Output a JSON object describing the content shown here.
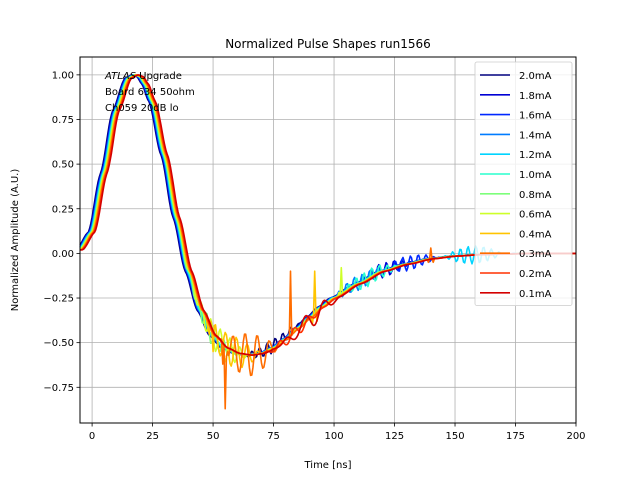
{
  "chart_data": {
    "type": "line",
    "title": "Normalized Pulse Shapes run1566",
    "xlabel": "Time [ns]",
    "ylabel": "Normalized Amplitude (A.U.)",
    "xlim": [
      -5,
      200
    ],
    "ylim": [
      -0.95,
      1.1
    ],
    "xticks": [
      0,
      25,
      50,
      75,
      100,
      125,
      150,
      175,
      200
    ],
    "xtick_labels": [
      "0",
      "25",
      "50",
      "75",
      "100",
      "125",
      "150",
      "175",
      "200"
    ],
    "yticks": [
      -0.75,
      -0.5,
      -0.25,
      0.0,
      0.25,
      0.5,
      0.75,
      1.0
    ],
    "ytick_labels": [
      "−0.75",
      "−0.50",
      "−0.25",
      "0.00",
      "0.25",
      "0.50",
      "0.75",
      "1.00"
    ],
    "grid": true,
    "legend_position": "top-right",
    "annotation": {
      "italic": "ATLAS",
      "line1_rest": " Upgrade",
      "line2": " Board 634 50ohm",
      "line3": " Ch059 20dB lo"
    },
    "series": [
      {
        "name": "2.0mA",
        "color": "#00007f",
        "shift": -1.5,
        "ringing": {
          "start": 62,
          "amp": 0.035,
          "period": 3.2
        }
      },
      {
        "name": "1.8mA",
        "color": "#0000d4",
        "shift": -1.2,
        "ringing": {
          "start": 108,
          "amp": 0.04,
          "period": 3.2
        }
      },
      {
        "name": "1.6mA",
        "color": "#0028ff",
        "shift": -1.0,
        "ringing": {
          "start": 118,
          "amp": 0.04,
          "period": 3.2
        }
      },
      {
        "name": "1.4mA",
        "color": "#007cff",
        "shift": -0.8,
        "ringing": {
          "start": 98,
          "amp": 0.04,
          "period": 3.2
        }
      },
      {
        "name": "1.2mA",
        "color": "#00d4ff",
        "shift": -0.6,
        "ringing": {
          "start": 145,
          "amp": 0.05,
          "period": 3.2
        }
      },
      {
        "name": "1.0mA",
        "color": "#29ffce",
        "shift": -0.4,
        "ringing": {
          "start": 102,
          "amp": 0.045,
          "period": 3.2
        }
      },
      {
        "name": "0.8mA",
        "color": "#7dff7a",
        "shift": -0.2,
        "ringing": {
          "start": 36,
          "amp": 0.06,
          "period": 3.5
        }
      },
      {
        "name": "0.6mA",
        "color": "#ceff29",
        "shift": 0.0,
        "ringing": {
          "start": 40,
          "amp": 0.08,
          "period": 4.0
        }
      },
      {
        "name": "0.4mA",
        "color": "#ffc400",
        "shift": 0.3,
        "ringing": {
          "start": 45,
          "amp": 0.09,
          "period": 4.5
        }
      },
      {
        "name": "0.3mA",
        "color": "#ff6d00",
        "shift": 0.6,
        "ringing": {
          "start": 52,
          "amp": 0.12,
          "period": 5.0
        }
      },
      {
        "name": "0.2mA",
        "color": "#ff3000",
        "shift": 0.9,
        "ringing": {
          "start": 70,
          "amp": 0.03,
          "period": 6.0
        }
      },
      {
        "name": "0.1mA",
        "color": "#d40000",
        "shift": 1.2,
        "ringing": {
          "start": 78,
          "amp": 0.05,
          "period": 8.0
        }
      }
    ],
    "spikes": [
      {
        "series": "0.3mA",
        "points": [
          [
            54,
            -0.62
          ],
          [
            55,
            -0.87
          ],
          [
            56,
            -0.55
          ],
          [
            81,
            -0.48
          ],
          [
            82,
            -0.1
          ],
          [
            83,
            -0.45
          ],
          [
            139,
            -0.05
          ],
          [
            140,
            0.03
          ],
          [
            141,
            -0.05
          ]
        ]
      },
      {
        "series": "0.4mA",
        "points": [
          [
            49,
            -0.38
          ],
          [
            50,
            -0.55
          ],
          [
            51,
            -0.4
          ],
          [
            91,
            -0.4
          ],
          [
            92,
            -0.1
          ],
          [
            93,
            -0.38
          ]
        ]
      },
      {
        "series": "0.6mA",
        "points": [
          [
            102,
            -0.22
          ],
          [
            103,
            -0.08
          ],
          [
            104,
            -0.22
          ]
        ]
      }
    ],
    "base_shape": {
      "t_points": [
        -5,
        0,
        5,
        10,
        15,
        18,
        20,
        22,
        25,
        30,
        35,
        40,
        45,
        50,
        55,
        60,
        65,
        70,
        75,
        80,
        85,
        90,
        95,
        100,
        110,
        120,
        130,
        140,
        150,
        160,
        170,
        180,
        190,
        200
      ],
      "y_points": [
        0.02,
        0.12,
        0.45,
        0.8,
        0.98,
        1.0,
        0.99,
        0.95,
        0.85,
        0.55,
        0.2,
        -0.1,
        -0.32,
        -0.46,
        -0.53,
        -0.56,
        -0.57,
        -0.56,
        -0.53,
        -0.48,
        -0.42,
        -0.36,
        -0.3,
        -0.25,
        -0.17,
        -0.1,
        -0.06,
        -0.03,
        -0.015,
        -0.007,
        -0.003,
        -0.001,
        0,
        0
      ]
    }
  }
}
